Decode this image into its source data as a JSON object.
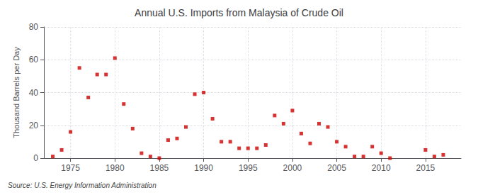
{
  "chart_data": {
    "type": "scatter",
    "title": "Annual U.S. Imports from Malaysia of Crude Oil",
    "ylabel": "Thousand Barrels per Day",
    "source": "Source: U.S. Energy Information Administration",
    "color": "#cc0000",
    "marker": "square",
    "grid": true,
    "xlim": [
      1972,
      2019
    ],
    "ylim": [
      0,
      80
    ],
    "xticks": [
      1975,
      1980,
      1985,
      1990,
      1995,
      2000,
      2005,
      2010,
      2015
    ],
    "yticks": [
      0,
      20,
      40,
      60,
      80
    ],
    "x": [
      1973,
      1974,
      1975,
      1976,
      1977,
      1978,
      1979,
      1980,
      1981,
      1982,
      1983,
      1984,
      1985,
      1986,
      1987,
      1988,
      1989,
      1990,
      1991,
      1992,
      1993,
      1994,
      1995,
      1996,
      1997,
      1998,
      1999,
      2000,
      2001,
      2002,
      2003,
      2004,
      2005,
      2006,
      2007,
      2008,
      2009,
      2010,
      2011,
      2015,
      2016,
      2017
    ],
    "values": [
      1,
      5,
      16,
      55,
      37,
      51,
      51,
      61,
      33,
      18,
      3,
      1,
      0,
      11,
      12,
      19,
      39,
      40,
      24,
      10,
      10,
      6,
      6,
      6,
      8,
      26,
      21,
      29,
      15,
      9,
      21,
      19,
      10,
      7,
      1,
      1,
      7,
      3,
      0,
      5,
      1,
      2
    ]
  }
}
